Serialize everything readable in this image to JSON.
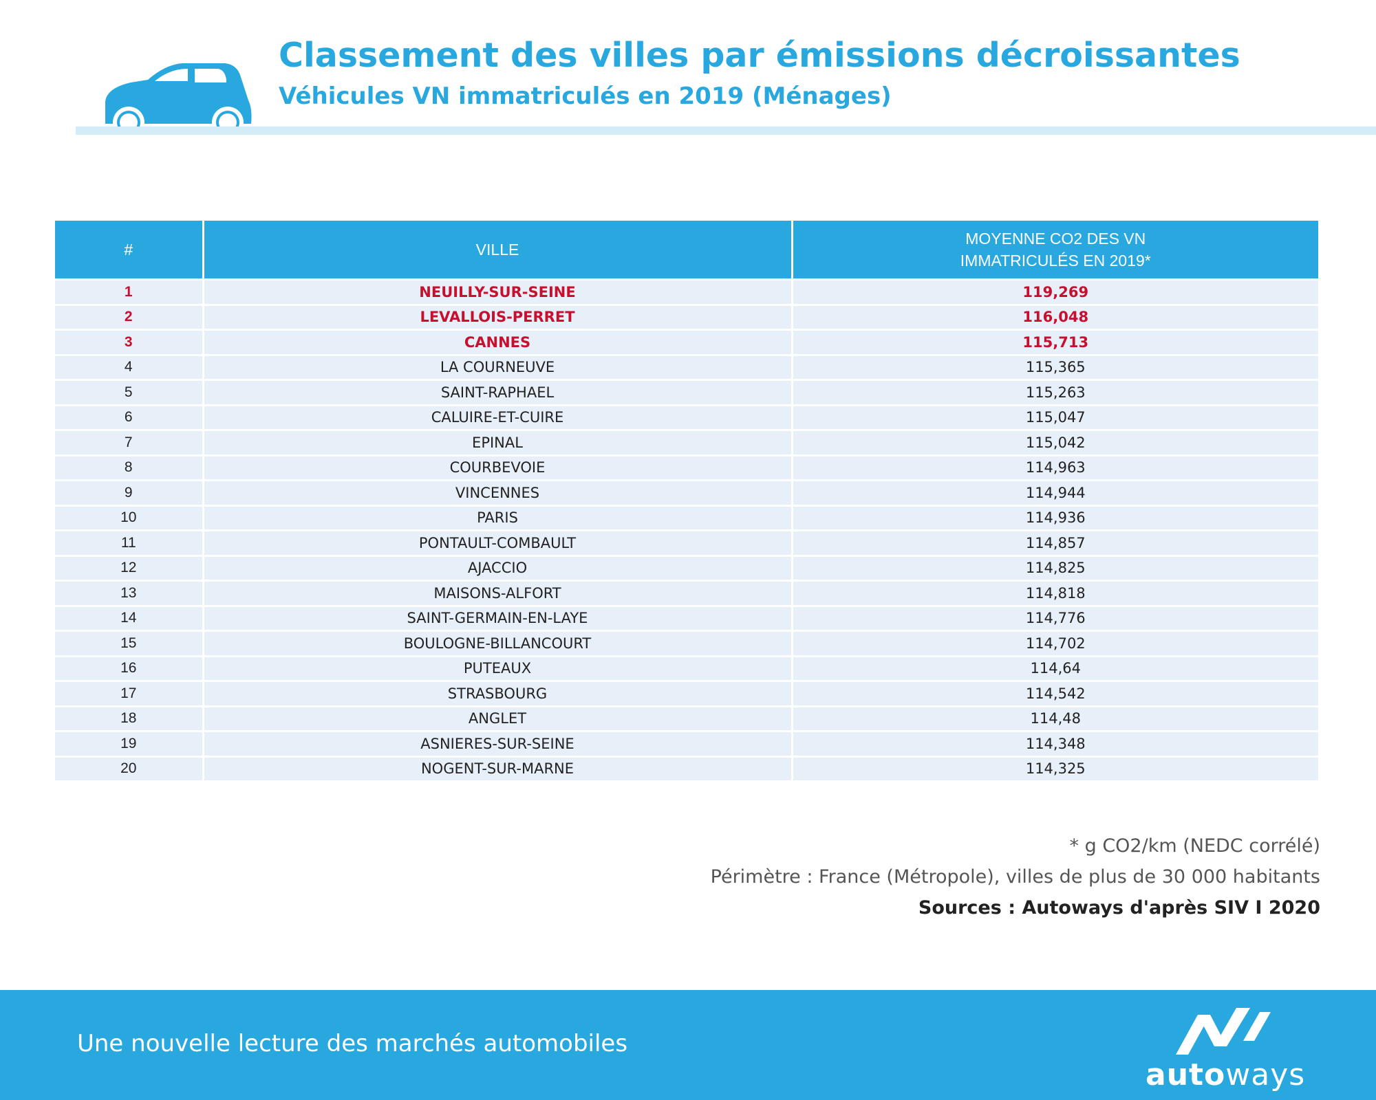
{
  "header": {
    "title": "Classement des villes par émissions décroissantes",
    "subtitle": "Véhicules VN immatriculés en 2019 (Ménages)",
    "icon": "car-icon"
  },
  "table": {
    "columns": [
      "#",
      "VILLE",
      "MOYENNE CO2 DES VN",
      "IMMATRICULÉS EN 2019*"
    ],
    "highlight_color": "#c8102e",
    "rows": [
      {
        "rank": "1",
        "city": "NEUILLY-SUR-SEINE",
        "value": "119,269"
      },
      {
        "rank": "2",
        "city": "LEVALLOIS-PERRET",
        "value": "116,048"
      },
      {
        "rank": "3",
        "city": "CANNES",
        "value": "115,713"
      },
      {
        "rank": "4",
        "city": "LA COURNEUVE",
        "value": "115,365"
      },
      {
        "rank": "5",
        "city": "SAINT-RAPHAEL",
        "value": "115,263"
      },
      {
        "rank": "6",
        "city": "CALUIRE-ET-CUIRE",
        "value": "115,047"
      },
      {
        "rank": "7",
        "city": "EPINAL",
        "value": "115,042"
      },
      {
        "rank": "8",
        "city": "COURBEVOIE",
        "value": "114,963"
      },
      {
        "rank": "9",
        "city": "VINCENNES",
        "value": "114,944"
      },
      {
        "rank": "10",
        "city": "PARIS",
        "value": "114,936"
      },
      {
        "rank": "11",
        "city": "PONTAULT-COMBAULT",
        "value": "114,857"
      },
      {
        "rank": "12",
        "city": "AJACCIO",
        "value": "114,825"
      },
      {
        "rank": "13",
        "city": "MAISONS-ALFORT",
        "value": "114,818"
      },
      {
        "rank": "14",
        "city": "SAINT-GERMAIN-EN-LAYE",
        "value": "114,776"
      },
      {
        "rank": "15",
        "city": "BOULOGNE-BILLANCOURT",
        "value": "114,702"
      },
      {
        "rank": "16",
        "city": "PUTEAUX",
        "value": "114,64"
      },
      {
        "rank": "17",
        "city": "STRASBOURG",
        "value": "114,542"
      },
      {
        "rank": "18",
        "city": "ANGLET",
        "value": "114,48"
      },
      {
        "rank": "19",
        "city": "ASNIERES-SUR-SEINE",
        "value": "114,348"
      },
      {
        "rank": "20",
        "city": "NOGENT-SUR-MARNE",
        "value": "114,325"
      }
    ]
  },
  "notes": {
    "unit": "* g CO2/km (NEDC corrélé)",
    "scope": "Périmètre : France (Métropole), villes de plus de 30 000 habitants",
    "source": "Sources : Autoways d'après SIV  I  2020"
  },
  "footer": {
    "tagline": "Une nouvelle lecture des marchés automobiles",
    "brand_bold": "auto",
    "brand_light": "ways",
    "logo_icon": "autoways-logo-icon"
  },
  "colors": {
    "accent": "#29a8e0",
    "row_background": "#e7eff9",
    "header_rule": "#d3ecf8"
  }
}
